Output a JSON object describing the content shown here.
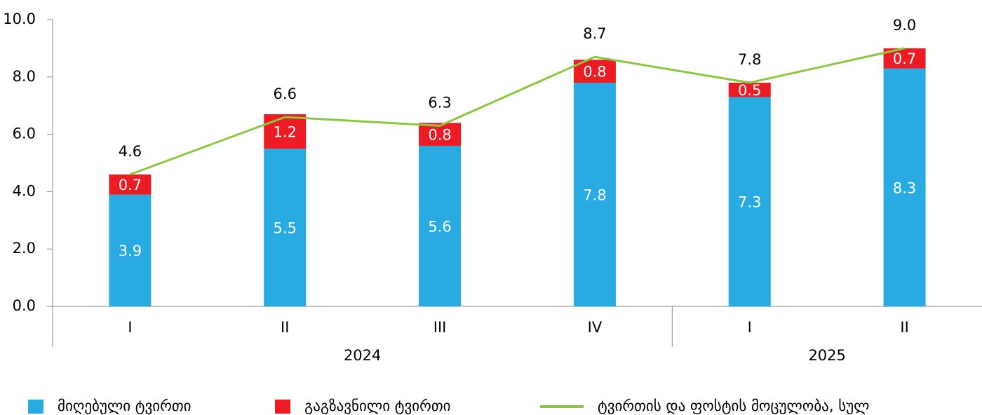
{
  "chart_data": {
    "type": "stacked_bar_line",
    "groups": [
      {
        "label": "2024",
        "categories": [
          "I",
          "II",
          "III",
          "IV"
        ]
      },
      {
        "label": "2025",
        "categories": [
          "I",
          "II"
        ]
      }
    ],
    "series": [
      {
        "name": "მიღებული ტვირთი",
        "type": "bar",
        "color": "#29abe2",
        "values": [
          3.9,
          5.5,
          5.6,
          7.8,
          7.3,
          8.3
        ]
      },
      {
        "name": "გაგზავნილი ტვირთი",
        "type": "bar",
        "color": "#ed1c24",
        "values": [
          0.7,
          1.2,
          0.8,
          0.8,
          0.5,
          0.7
        ]
      },
      {
        "name": "ტვირთის და ფოსტის მოცულობა, სულ",
        "type": "line",
        "color": "#8dc63f",
        "values": [
          4.6,
          6.6,
          6.3,
          8.7,
          7.8,
          9.0
        ],
        "value_labels": [
          "4.6",
          "6.6",
          "6.3",
          "8.7",
          "7.8",
          "9.0"
        ]
      }
    ],
    "ylim": [
      0,
      10
    ],
    "yticks": [
      {
        "value": 0,
        "label": "0.0"
      },
      {
        "value": 2,
        "label": "2.0"
      },
      {
        "value": 4,
        "label": "4.0"
      },
      {
        "value": 6,
        "label": "6.0"
      },
      {
        "value": 8,
        "label": "8.0"
      },
      {
        "value": 10,
        "label": "10.0"
      }
    ],
    "legend": "bottom"
  }
}
